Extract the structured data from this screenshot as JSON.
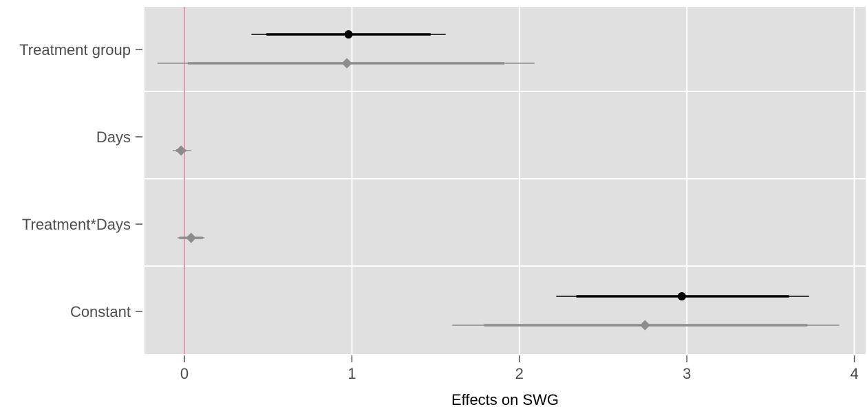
{
  "chart_data": {
    "type": "coefficient-plot",
    "title": "",
    "xlabel": "Effects on SWG",
    "ylabel": "",
    "xlim": [
      -0.23,
      4.1
    ],
    "xticks": [
      0,
      1,
      2,
      3,
      4
    ],
    "categories": [
      "Treatment group",
      "Days",
      "Treatment*Days",
      "Constant"
    ],
    "reference_line": 0,
    "grid": true,
    "legend": "none",
    "colors": {
      "panel": "#e0e0e0",
      "grid": "#ffffff",
      "reference_line": "#d94f8a",
      "series_1": "#000000",
      "series_2": "#8c8c8c",
      "axis_text": "#4d4d4d"
    },
    "series": [
      {
        "marker": "circle",
        "color": "#000000",
        "points": [
          {
            "category": "Treatment group",
            "estimate": 0.98,
            "ci50": [
              0.49,
              1.47
            ],
            "ci95": [
              0.4,
              1.56
            ]
          },
          {
            "category": "Constant",
            "estimate": 2.97,
            "ci50": [
              2.34,
              3.61
            ],
            "ci95": [
              2.22,
              3.73
            ]
          }
        ]
      },
      {
        "marker": "diamond",
        "color": "#8c8c8c",
        "points": [
          {
            "category": "Treatment group",
            "estimate": 0.97,
            "ci50": [
              0.02,
              1.91
            ],
            "ci95": [
              -0.16,
              2.09
            ]
          },
          {
            "category": "Days",
            "estimate": -0.02,
            "ci50": [
              -0.05,
              0.01
            ],
            "ci95": [
              -0.07,
              0.04
            ]
          },
          {
            "category": "Treatment*Days",
            "estimate": 0.04,
            "ci50": [
              -0.03,
              0.11
            ],
            "ci95": [
              -0.04,
              0.12
            ]
          },
          {
            "category": "Constant",
            "estimate": 2.75,
            "ci50": [
              1.79,
              3.72
            ],
            "ci95": [
              1.6,
              3.91
            ]
          }
        ]
      }
    ]
  }
}
